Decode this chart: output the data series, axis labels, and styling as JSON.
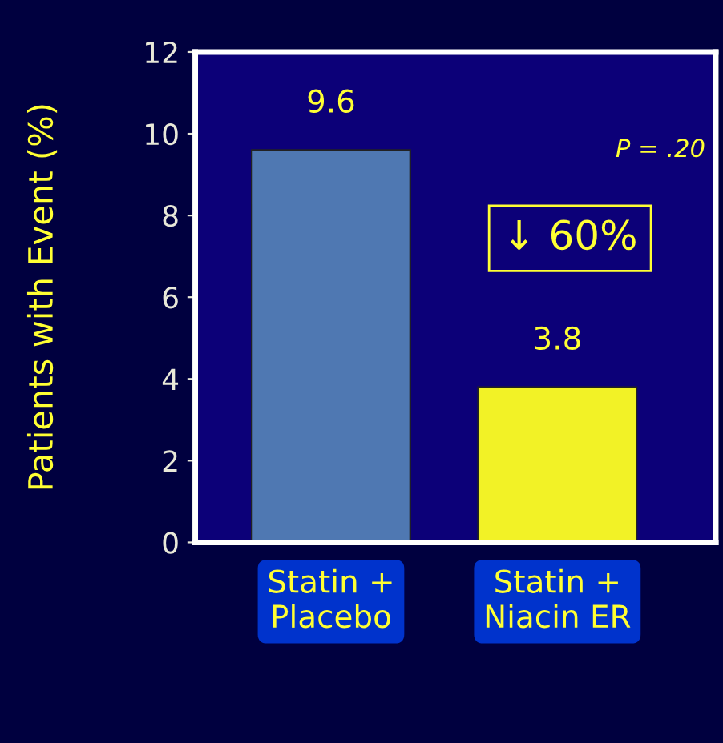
{
  "chart_data": {
    "type": "bar",
    "ylabel": "Patients with Event (%)",
    "categories": [
      "Statin +\nPlacebo",
      "Statin +\nNiacin ER"
    ],
    "values": [
      9.6,
      3.8
    ],
    "colors": [
      "#4f78b2",
      "#f2f226"
    ],
    "ylim": [
      0,
      12
    ],
    "yticks": [
      0,
      2,
      4,
      6,
      8,
      10,
      12
    ],
    "data_labels": true,
    "grid": false,
    "legend": false,
    "annotations": [
      "P = .20",
      "↓ 60%"
    ]
  }
}
